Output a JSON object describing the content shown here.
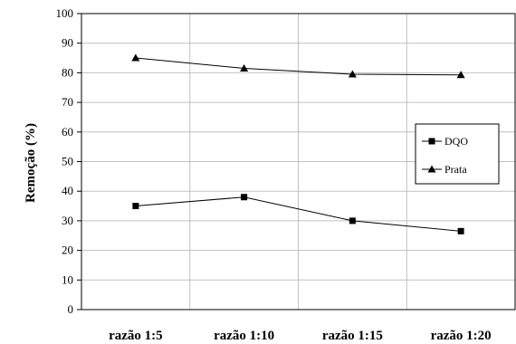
{
  "chart_data": {
    "type": "line",
    "categories": [
      "razão 1:5",
      "razão 1:10",
      "razão 1:15",
      "razão 1:20"
    ],
    "series": [
      {
        "name": "DQO",
        "marker": "square",
        "values": [
          35,
          38,
          30,
          26.5
        ]
      },
      {
        "name": "Prata",
        "marker": "triangle",
        "values": [
          85,
          81.5,
          79.5,
          79.3
        ]
      }
    ],
    "xlabel": "",
    "ylabel": "Remoção (%)",
    "ylim": [
      0,
      100
    ],
    "yticks": [
      0,
      10,
      20,
      30,
      40,
      50,
      60,
      70,
      80,
      90,
      100
    ],
    "grid": true,
    "legend": "right",
    "colors": {
      "line": "#000000",
      "grid": "#c0c0c0",
      "axis": "#000000"
    }
  }
}
